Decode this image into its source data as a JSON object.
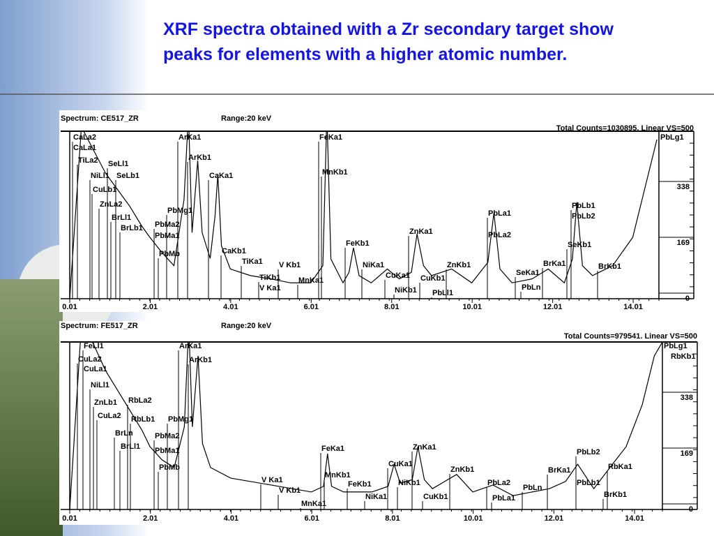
{
  "header": {
    "title": [
      "XRF spectra obtained with a Zr secondary target show",
      "peaks for elements with a higher atomic number."
    ]
  },
  "chart_data": [
    {
      "type": "line",
      "title": "Spectrum: CE517_ZR",
      "subtitle": "Range:20  keV",
      "annotation": "Total Counts=1030895.  Linear   VS=500",
      "x": [
        0.01,
        0.3,
        0.6,
        0.9,
        1.2,
        1.5,
        1.8,
        2.0,
        2.3,
        2.6,
        2.85,
        2.96,
        3.05,
        3.19,
        3.3,
        3.5,
        3.62,
        3.69,
        3.78,
        4.0,
        4.5,
        5.0,
        5.5,
        6.0,
        6.3,
        6.4,
        6.5,
        6.8,
        6.95,
        7.06,
        7.2,
        7.5,
        7.9,
        8.2,
        8.5,
        8.64,
        8.8,
        9.0,
        9.5,
        10.0,
        10.4,
        10.55,
        10.7,
        11.0,
        11.5,
        11.9,
        12.3,
        12.5,
        12.61,
        12.75,
        13.0,
        13.5,
        14.0,
        14.3,
        14.6
      ],
      "series": [
        {
          "color": "#000000",
          "values": [
            0,
            520,
            450,
            380,
            330,
            280,
            220,
            186,
            140,
            100,
            300,
            560,
            200,
            418,
            200,
            122,
            250,
            376,
            160,
            90,
            70,
            60,
            48,
            48,
            100,
            560,
            120,
            48,
            80,
            154,
            70,
            48,
            90,
            60,
            80,
            196,
            100,
            70,
            90,
            48,
            110,
            260,
            90,
            48,
            60,
            90,
            48,
            120,
            292,
            100,
            70,
            100,
            186,
            334,
            482
          ]
        }
      ],
      "xlim": [
        0.01,
        14.65
      ],
      "xticks": [
        0.01,
        2.01,
        4.01,
        6.01,
        8.01,
        10.01,
        12.01,
        14.01
      ],
      "ylim": [
        0,
        507
      ],
      "yticks": [
        0,
        169,
        338
      ],
      "peak_labels": [
        "CaLa2",
        "CaLa1",
        "TiLa2",
        "SeLl1",
        "NiLl1",
        "SeLb1",
        "CuLb1",
        "ZnLa2",
        "BrLl1",
        "BrLb1",
        "PbMg1",
        "PbMa2",
        "PbMa1",
        "PbMb",
        "ArKa1",
        "ArKb1",
        "CaKa1",
        "FeKa1",
        "MnKb1",
        "CaKb1",
        "TiKa1",
        "V Kb1",
        "TiKb1",
        "V Ka1",
        "MnKa1",
        "FeKb1",
        "NiKa1",
        "CuKa1",
        "NiKb1",
        "CuKb1",
        "ZnKa1",
        "ZnKb1",
        "PbLl1",
        "PbLa1",
        "PbLa2",
        "SeKa1",
        "PbLn",
        "BrKa1",
        "SeKb1",
        "PbLb1",
        "PbLb2",
        "BrKb1",
        "PbLg1"
      ]
    },
    {
      "type": "line",
      "title": "Spectrum: FE517_ZR",
      "subtitle": "Range:20  keV",
      "annotation": "Total Counts=979541.  Linear   VS=500",
      "x": [
        0.01,
        0.3,
        0.6,
        0.9,
        1.2,
        1.5,
        1.8,
        2.0,
        2.3,
        2.6,
        2.85,
        2.96,
        3.05,
        3.19,
        3.3,
        3.5,
        4.0,
        5.0,
        6.0,
        6.3,
        6.4,
        6.5,
        6.8,
        7.5,
        7.9,
        8.05,
        8.2,
        8.5,
        8.64,
        8.8,
        9.0,
        9.6,
        10.0,
        10.5,
        11.0,
        11.9,
        12.3,
        12.6,
        13.0,
        13.4,
        13.8,
        14.2,
        14.5,
        14.7
      ],
      "series": [
        {
          "color": "#000000",
          "values": [
            0,
            560,
            500,
            420,
            360,
            300,
            240,
            190,
            150,
            127,
            250,
            560,
            250,
            465,
            200,
            127,
            95,
            74,
            53,
            70,
            169,
            70,
            53,
            53,
            70,
            137,
            80,
            90,
            190,
            90,
            63,
            106,
            53,
            74,
            42,
            63,
            85,
            137,
            63,
            127,
            190,
            317,
            465,
            507
          ]
        }
      ],
      "xlim": [
        0.01,
        14.7
      ],
      "xticks": [
        0.01,
        2.01,
        4.01,
        6.01,
        8.01,
        10.01,
        12.01,
        14.01
      ],
      "ylim": [
        0,
        507
      ],
      "yticks": [
        0,
        169,
        338
      ],
      "peak_labels": [
        "FeLl1",
        "CuLa2",
        "CuLa1",
        "NiLl1",
        "ZnLb1",
        "RbLa2",
        "CuLa2",
        "RbLb1",
        "PbMg1",
        "BrLn",
        "BrLl1",
        "PbMa2",
        "PbMa1",
        "PbMb",
        "ArKa1",
        "ArKb1",
        "FeKa1",
        "MnKb1",
        "V Ka1",
        "V Kb1",
        "MnKa1",
        "FeKb1",
        "NiKa1",
        "CuKa1",
        "NiKb1",
        "CuKb1",
        "ZnKa1",
        "ZnKb1",
        "PbLa2",
        "PbLa1",
        "PbLn",
        "BrKa1",
        "PbLb2",
        "PbLb1",
        "RbKa1",
        "BrKb1",
        "PbLg1",
        "RbKb1"
      ]
    }
  ]
}
